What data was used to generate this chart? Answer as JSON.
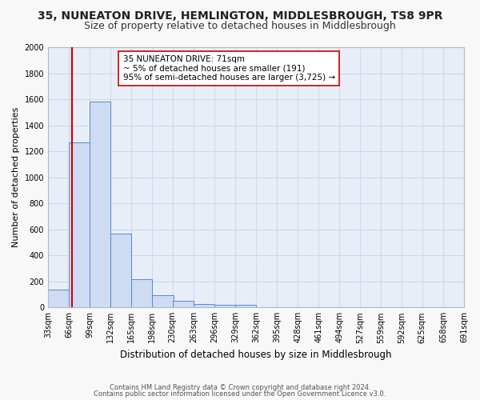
{
  "title": "35, NUNEATON DRIVE, HEMLINGTON, MIDDLESBROUGH, TS8 9PR",
  "subtitle": "Size of property relative to detached houses in Middlesbrough",
  "xlabel": "Distribution of detached houses by size in Middlesbrough",
  "ylabel": "Number of detached properties",
  "footnote1": "Contains HM Land Registry data © Crown copyright and database right 2024.",
  "footnote2": "Contains public sector information licensed under the Open Government Licence v3.0.",
  "bins": [
    33,
    66,
    99,
    132,
    165,
    198,
    230,
    263,
    296,
    329,
    362,
    395,
    428,
    461,
    494,
    527,
    559,
    592,
    625,
    658,
    691
  ],
  "bar_heights": [
    140,
    1270,
    1580,
    565,
    215,
    95,
    50,
    25,
    20,
    20,
    0,
    0,
    0,
    0,
    0,
    0,
    0,
    0,
    0,
    0
  ],
  "bar_color": "#cddcf3",
  "bar_edge_color": "#5588cc",
  "property_size": 71,
  "vline_color": "#cc0000",
  "annotation_line1": "35 NUNEATON DRIVE: 71sqm",
  "annotation_line2": "~ 5% of detached houses are smaller (191)",
  "annotation_line3": "95% of semi-detached houses are larger (3,725) →",
  "annotation_box_edge": "#cc0000",
  "annotation_box_face": "#ffffff",
  "ylim": [
    0,
    2000
  ],
  "yticks": [
    0,
    200,
    400,
    600,
    800,
    1000,
    1200,
    1400,
    1600,
    1800,
    2000
  ],
  "background_color": "#e8eef8",
  "grid_color": "#d0d8e8",
  "title_fontsize": 10,
  "subtitle_fontsize": 9,
  "xlabel_fontsize": 8.5,
  "ylabel_fontsize": 8,
  "tick_fontsize": 7,
  "annotation_fontsize": 7.5,
  "footnote_fontsize": 6
}
